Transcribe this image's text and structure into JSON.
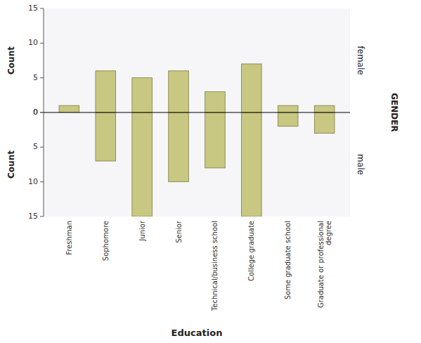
{
  "chart_data": {
    "type": "bar",
    "categories": [
      "Freshman",
      "Sophomore",
      "Junior",
      "Senior",
      "Technical/business school",
      "College graduate",
      "Some graduate school",
      "Graduate or professional\ndegree"
    ],
    "series": [
      {
        "name": "female",
        "color": "#c8c882",
        "values": [
          1,
          6,
          5,
          6,
          3,
          7,
          1,
          1
        ]
      },
      {
        "name": "male",
        "color": "#c8c882",
        "values": [
          0,
          7,
          15,
          10,
          8,
          15,
          2,
          3
        ]
      }
    ],
    "ylabel": "Count",
    "xlabel": "Education",
    "annotations": [
      "GENDER"
    ],
    "ylim": [
      0,
      15
    ],
    "yticks": [
      0,
      5,
      10,
      15
    ]
  }
}
